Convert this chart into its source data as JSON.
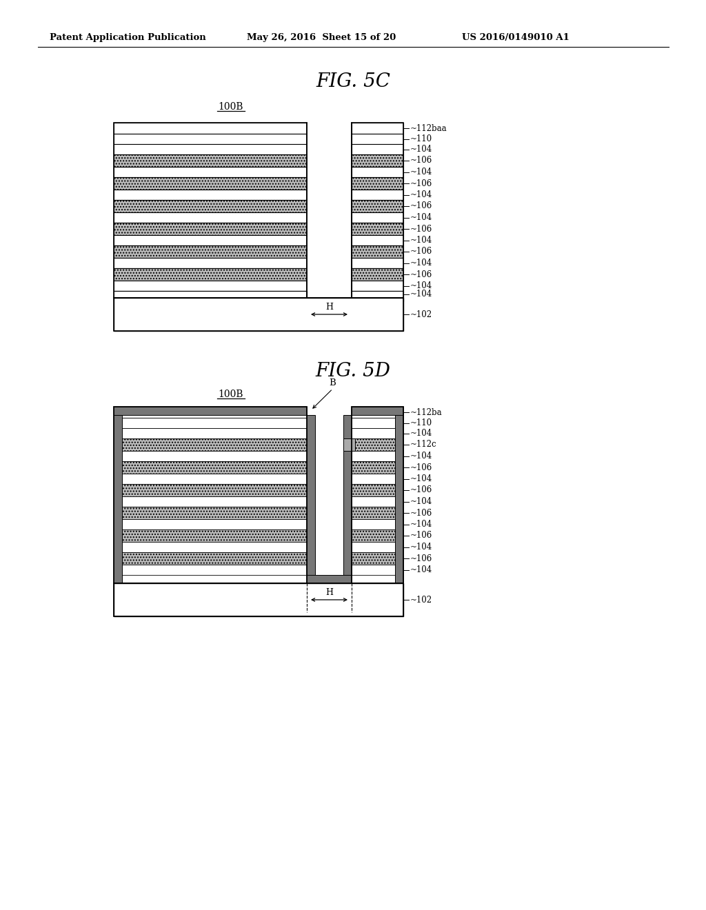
{
  "bg_color": "#ffffff",
  "header_text": "Patent Application Publication",
  "header_date": "May 26, 2016  Sheet 15 of 20",
  "header_patent": "US 2016/0149010 A1",
  "fig5c_title": "FIG. 5C",
  "fig5d_title": "FIG. 5D",
  "label_100B": "100B",
  "label_102": "102",
  "label_104": "104",
  "label_106": "106",
  "label_110": "110",
  "label_112baa": "112baa",
  "label_112ba": "112ba",
  "label_112c": "112c",
  "label_H": "H",
  "label_B": "B",
  "hatch_color": "#bbbbbb",
  "coat_color": "#777777",
  "line_color": "#000000"
}
